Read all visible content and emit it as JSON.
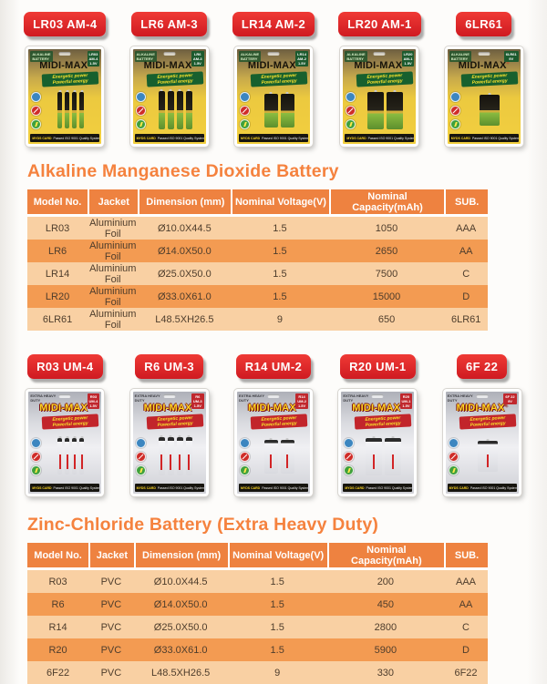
{
  "brand": {
    "name": "MIDI-MAX",
    "registered_mark": "®",
    "slogan_line1": "Energetic power",
    "slogan_line2": "Powerful energy",
    "footer_tag": "MYDS CARD",
    "footer_cert": "Passed ISO 9001 Quality System Certification"
  },
  "colors": {
    "accent_orange": "#f5823e",
    "table_header": "#ee8240",
    "row_light": "#f9d0a3",
    "row_dark": "#f39b52",
    "label_red": "#d81d24",
    "pack_gold": "#ecc93f",
    "pack_silver": "#d9dadf",
    "banner_green": "#17602e",
    "banner_red": "#c2252b"
  },
  "pack_icons": [
    "eco-icon",
    "no-mercury-icon",
    "flash-icon"
  ],
  "alkaline": {
    "heading": "Alkaline Manganese Dioxide Battery",
    "products": [
      {
        "label": "LR03 AM-4",
        "corner_lines": [
          "ALKALINE",
          "BATTERY"
        ],
        "tag_lines": [
          "LR03",
          "AM-4",
          "1.5V"
        ],
        "cells": 4,
        "cell_type": "aaa"
      },
      {
        "label": "LR6 AM-3",
        "corner_lines": [
          "ALKALINE",
          "BATTERY"
        ],
        "tag_lines": [
          "LR6",
          "AM-3",
          "1.5V"
        ],
        "cells": 4,
        "cell_type": "aa"
      },
      {
        "label": "LR14 AM-2",
        "corner_lines": [
          "ALKALINE",
          "BATTERY"
        ],
        "tag_lines": [
          "LR14",
          "AM-2",
          "1.5V"
        ],
        "cells": 2,
        "cell_type": "c"
      },
      {
        "label": "LR20 AM-1",
        "corner_lines": [
          "ALKALINE",
          "BATTERY"
        ],
        "tag_lines": [
          "LR20",
          "AM-1",
          "1.5V"
        ],
        "cells": 2,
        "cell_type": "d"
      },
      {
        "label": "6LR61",
        "corner_lines": [
          "ALKALINE",
          "BATTERY"
        ],
        "tag_lines": [
          "6LR61",
          "9V"
        ],
        "cells": 1,
        "cell_type": "9v"
      }
    ],
    "table": {
      "columns": [
        "Model No.",
        "Jacket",
        "Dimension (mm)",
        "Nominal Voltage(V)",
        "Nominal Capacity(mAh)",
        "SUB."
      ],
      "rows": [
        [
          "LR03",
          "Aluminium Foil",
          "Ø10.0X44.5",
          "1.5",
          "1050",
          "AAA"
        ],
        [
          "LR6",
          "Aluminium Foil",
          "Ø14.0X50.0",
          "1.5",
          "2650",
          "AA"
        ],
        [
          "LR14",
          "Aluminium Foil",
          "Ø25.0X50.0",
          "1.5",
          "7500",
          "C"
        ],
        [
          "LR20",
          "Aluminium Foil",
          "Ø33.0X61.0",
          "1.5",
          "15000",
          "D"
        ],
        [
          "6LR61",
          "Aluminium Foil",
          "L48.5XH26.5",
          "9",
          "650",
          "6LR61"
        ]
      ]
    }
  },
  "zinc": {
    "heading": "Zinc-Chloride Battery (Extra Heavy Duty)",
    "products": [
      {
        "label": "R03 UM-4",
        "corner_lines": [
          "EXTRA HEAVY",
          "DUTY"
        ],
        "tag_lines": [
          "R03",
          "UM-4",
          "1.5V"
        ],
        "cells": 4,
        "cell_type": "aaa"
      },
      {
        "label": "R6 UM-3",
        "corner_lines": [
          "EXTRA HEAVY",
          "DUTY"
        ],
        "tag_lines": [
          "R6",
          "UM-3",
          "1.5V"
        ],
        "cells": 4,
        "cell_type": "aa"
      },
      {
        "label": "R14 UM-2",
        "corner_lines": [
          "EXTRA HEAVY",
          "DUTY"
        ],
        "tag_lines": [
          "R14",
          "UM-2",
          "1.5V"
        ],
        "cells": 2,
        "cell_type": "c"
      },
      {
        "label": "R20 UM-1",
        "corner_lines": [
          "EXTRA HEAVY",
          "DUTY"
        ],
        "tag_lines": [
          "R20",
          "UM-1",
          "1.5V"
        ],
        "cells": 2,
        "cell_type": "d"
      },
      {
        "label": "6F 22",
        "corner_lines": [
          "EXTRA HEAVY",
          "DUTY"
        ],
        "tag_lines": [
          "6F 22",
          "9V"
        ],
        "cells": 1,
        "cell_type": "9v"
      }
    ],
    "table": {
      "columns": [
        "Model No.",
        "Jacket",
        "Dimension (mm)",
        "Nominal Voltage(V)",
        "Nominal Capacity(mAh)",
        "SUB."
      ],
      "rows": [
        [
          "R03",
          "PVC",
          "Ø10.0X44.5",
          "1.5",
          "200",
          "AAA"
        ],
        [
          "R6",
          "PVC",
          "Ø14.0X50.0",
          "1.5",
          "450",
          "AA"
        ],
        [
          "R14",
          "PVC",
          "Ø25.0X50.0",
          "1.5",
          "2800",
          "C"
        ],
        [
          "R20",
          "PVC",
          "Ø33.0X61.0",
          "1.5",
          "5900",
          "D"
        ],
        [
          "6F22",
          "PVC",
          "L48.5XH26.5",
          "9",
          "330",
          "6F22"
        ]
      ]
    }
  }
}
